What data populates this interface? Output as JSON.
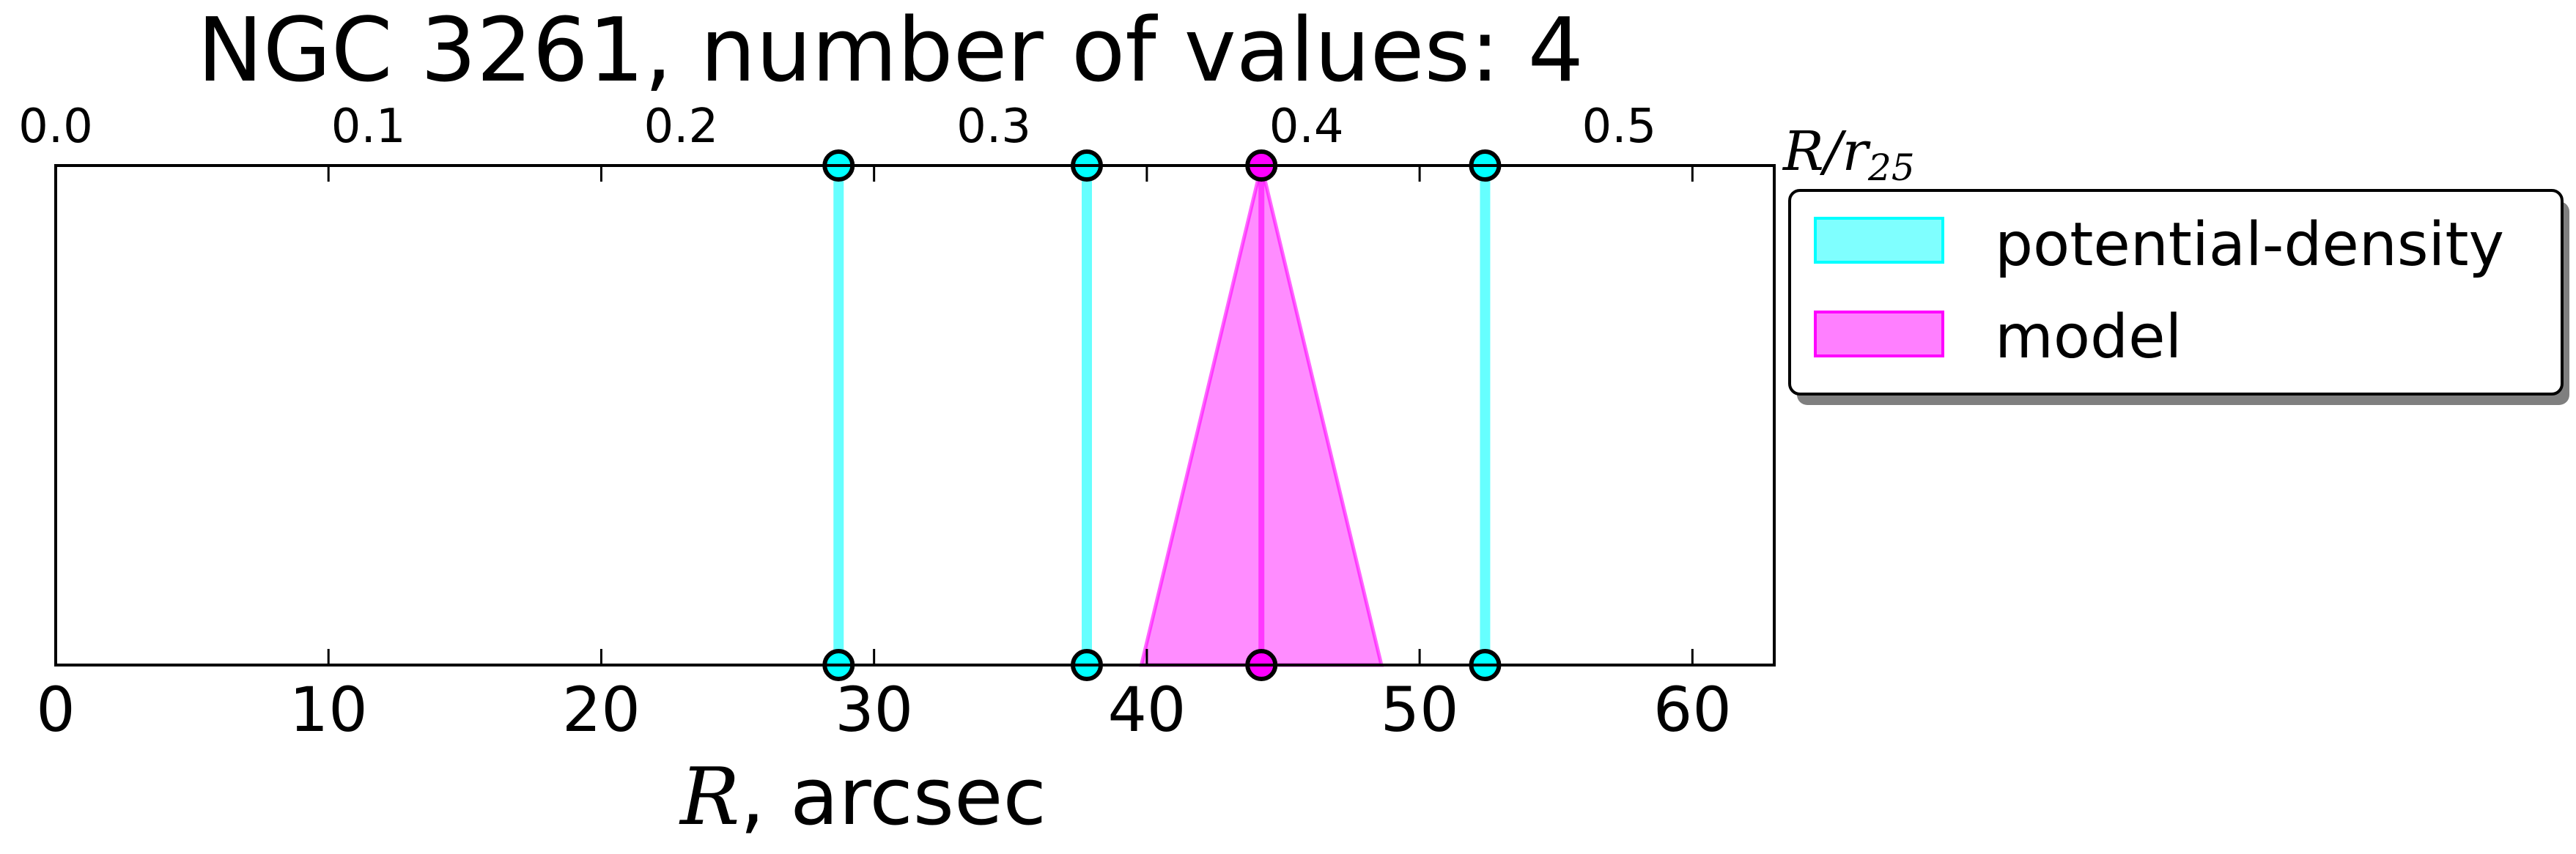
{
  "chart_data": {
    "type": "line",
    "title": "NGC 3261, number of values: 4",
    "xlabel_math": "R",
    "xlabel_rest": ", arcsec",
    "top_axis_label_main": "R/r",
    "top_axis_label_sub": "25",
    "xlim": [
      0,
      63
    ],
    "top_xlim": [
      0.0,
      0.5496
    ],
    "x_ticks": [
      0,
      10,
      20,
      30,
      40,
      50,
      60
    ],
    "x_tick_labels": [
      "0",
      "10",
      "20",
      "30",
      "40",
      "50",
      "60"
    ],
    "top_ticks": [
      0.0,
      0.1,
      0.2,
      0.3,
      0.4,
      0.5
    ],
    "top_tick_labels": [
      "0.0",
      "0.1",
      "0.2",
      "0.3",
      "0.4",
      "0.5"
    ],
    "series": [
      {
        "name": "potential-density",
        "color": "#00ffff",
        "values": [
          28.7,
          37.8,
          52.4
        ]
      },
      {
        "name": "model",
        "color": "#ff00ff",
        "values": [
          44.2
        ],
        "range": [
          39.8,
          48.6
        ]
      }
    ],
    "legend_position": "upper right, outside plot",
    "grid": false
  }
}
